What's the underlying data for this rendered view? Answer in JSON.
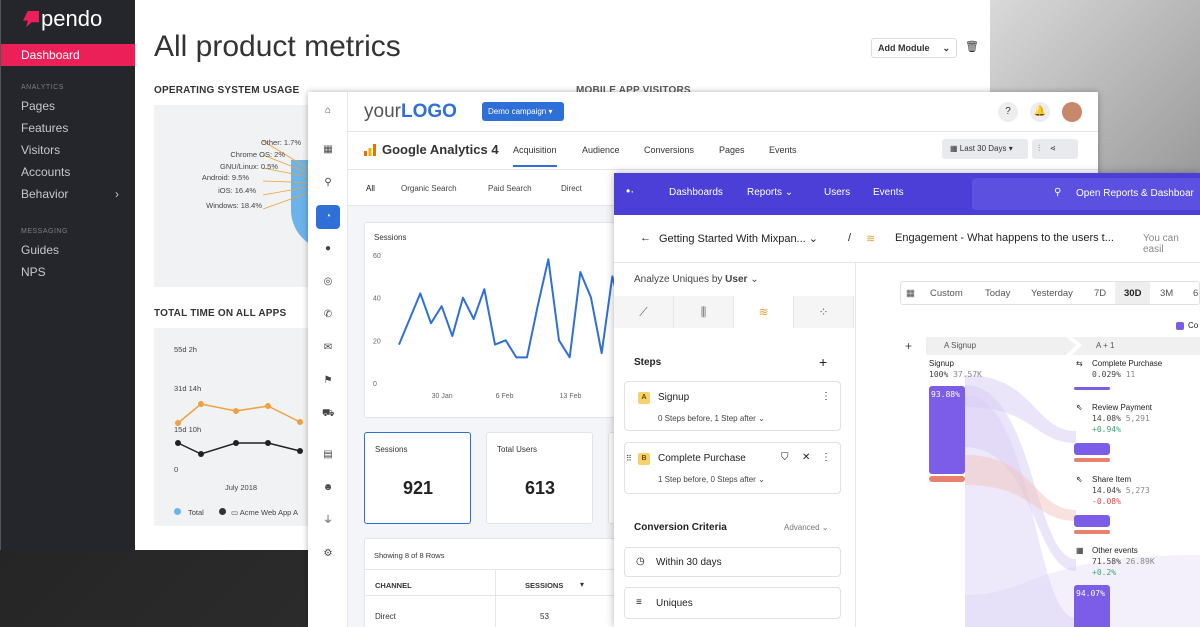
{
  "pendo": {
    "logo": "pendo",
    "nav": {
      "dashboard": "Dashboard",
      "analytics_section": "ANALYTICS",
      "pages": "Pages",
      "features": "Features",
      "visitors": "Visitors",
      "accounts": "Accounts",
      "behavior": "Behavior",
      "messaging_section": "MESSAGING",
      "guides": "Guides",
      "nps": "NPS"
    },
    "title": "All product metrics",
    "add_module": "Add Module",
    "os_usage": {
      "heading": "OPERATING SYSTEM USAGE",
      "labels": [
        "Other: 1.7%",
        "Chrome OS: 2%",
        "GNU/Linux: 0.5%",
        "Android: 9.5%",
        "iOS: 16.4%",
        "Windows: 18.4%"
      ]
    },
    "mobile_heading": "MOBILE APP VISITORS",
    "total_time": {
      "heading": "TOTAL TIME ON ALL APPS",
      "y_ticks": [
        "55d 2h",
        "31d 14h",
        "15d 10h",
        "0"
      ],
      "x_label": "July 2018",
      "legend": [
        "Total",
        "Acme Web App A"
      ]
    }
  },
  "ga": {
    "logo_a": "your",
    "logo_b": "LOGO",
    "campaign": "Demo campaign",
    "product": "Google Analytics 4",
    "tabs": [
      "Acquisition",
      "Audience",
      "Conversions",
      "Pages",
      "Events"
    ],
    "date_range": "Last 30 Days",
    "subtabs": [
      "All",
      "Organic Search",
      "Paid Search",
      "Direct"
    ],
    "kpis": [
      {
        "label": "Sessions",
        "value": "921"
      },
      {
        "label": "Total Users",
        "value": "613"
      }
    ],
    "table": {
      "caption": "Showing 8 of 8 Rows",
      "headers": [
        "CHANNEL",
        "SESSIONS"
      ],
      "rows": [
        [
          "Direct",
          "53"
        ]
      ]
    }
  },
  "chart_data": {
    "type": "line",
    "title": "Sessions",
    "ylim": [
      0,
      60
    ],
    "y_ticks": [
      0,
      20,
      40,
      60
    ],
    "x_ticks": [
      "30 Jan",
      "6 Feb",
      "13 Feb"
    ],
    "values": [
      18,
      30,
      42,
      28,
      36,
      22,
      40,
      30,
      44,
      18,
      20,
      12,
      12,
      36,
      58,
      20,
      12,
      52,
      40,
      14,
      50,
      30
    ]
  },
  "mixpanel": {
    "nav": [
      "Dashboards",
      "Reports",
      "Users",
      "Events"
    ],
    "search": "Open Reports & Dashboar",
    "breadcrumb_a": "Getting Started With Mixpan...",
    "breadcrumb_b": "Engagement - What happens to the users t...",
    "breadcrumb_c": "You can easil",
    "analyze_label": "Analyze Uniques by",
    "analyze_value": "User",
    "steps_heading": "Steps",
    "steps": [
      {
        "badge": "A",
        "name": "Signup",
        "sub": "0 Steps before, 1 Step after"
      },
      {
        "badge": "B",
        "name": "Complete Purchase",
        "sub": "1 Step before, 0 Steps after"
      }
    ],
    "conversion_heading": "Conversion Criteria",
    "advanced": "Advanced",
    "within": "Within 30 days",
    "uniques": "Uniques",
    "dates": [
      "Custom",
      "Today",
      "Yesterday",
      "7D",
      "30D",
      "3M",
      "6"
    ],
    "legend_item": "Co",
    "col_a": "A Signup",
    "col_b": "A + 1",
    "signup": {
      "name": "Signup",
      "pct": "100%",
      "count": "37.57K",
      "bar_label": "93.88%"
    },
    "flows": [
      {
        "name": "Complete Purchase",
        "pct": "0.029%",
        "count": "11"
      },
      {
        "name": "Review Payment",
        "pct": "14.08%",
        "count": "5,291",
        "delta": "+0.94%"
      },
      {
        "name": "Share Item",
        "pct": "14.04%",
        "count": "5,273",
        "delta": "-0.08%"
      },
      {
        "name": "Other events",
        "pct": "71.58%",
        "count": "26.89K",
        "delta": "+0.2%"
      }
    ],
    "bottom_bar_label": "94.07%"
  }
}
